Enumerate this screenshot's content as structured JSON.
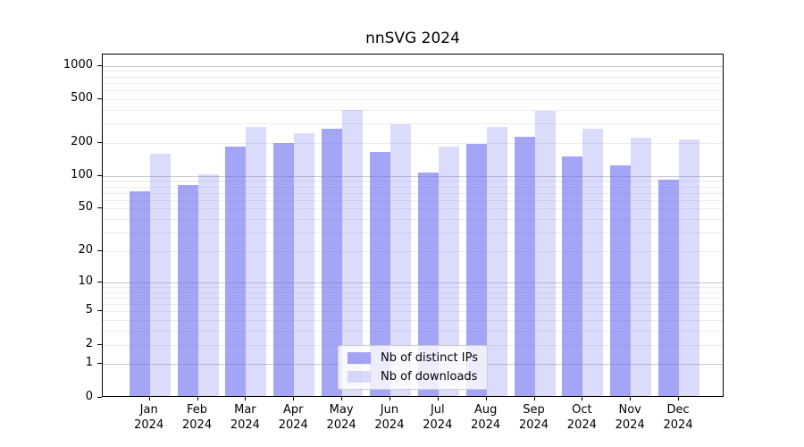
{
  "chart_data": {
    "type": "bar",
    "title": "nnSVG 2024",
    "categories": [
      "Jan",
      "Feb",
      "Mar",
      "Apr",
      "May",
      "Jun",
      "Jul",
      "Aug",
      "Sep",
      "Oct",
      "Nov",
      "Dec"
    ],
    "category_subline": "2024",
    "series": [
      {
        "name": "Nb of distinct IPs",
        "color": "rgba(110,110,240,0.62)",
        "values": [
          70,
          80,
          180,
          195,
          260,
          160,
          105,
          190,
          220,
          147,
          122,
          90
        ]
      },
      {
        "name": "Nb of downloads",
        "color": "rgba(110,110,240,0.25)",
        "values": [
          155,
          100,
          270,
          240,
          390,
          285,
          180,
          270,
          380,
          260,
          218,
          210
        ]
      }
    ],
    "yscale": "log1p",
    "y_ticks": [
      0,
      1,
      2,
      5,
      10,
      20,
      50,
      100,
      200,
      500,
      1000
    ],
    "ylim": [
      0,
      1100
    ],
    "grid": true,
    "legend_position": "lower center",
    "xlabel": "",
    "ylabel": ""
  }
}
